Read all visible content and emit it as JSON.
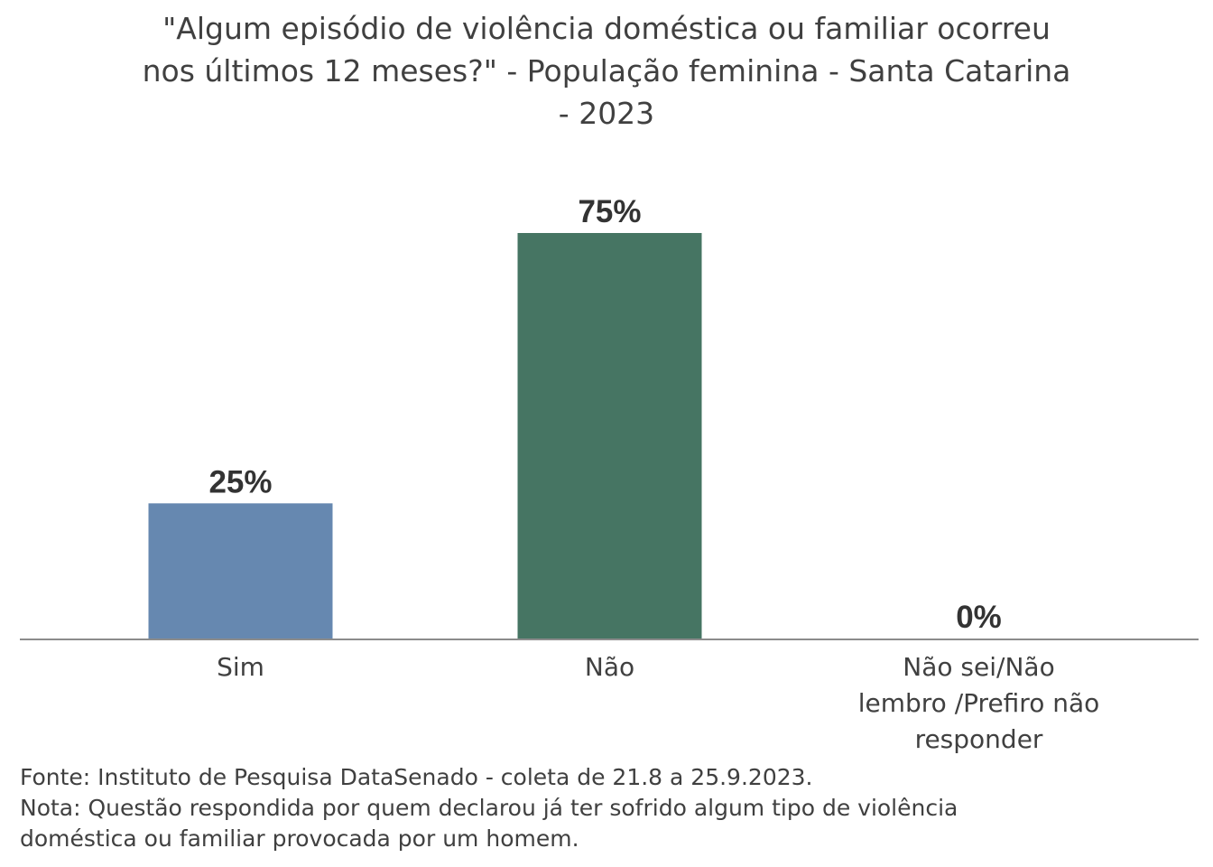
{
  "chart_data": {
    "type": "bar",
    "title_lines": [
      "\"Algum episódio de violência doméstica ou familiar ocorreu",
      "nos últimos 12 meses?\" - População feminina - Santa Catarina",
      "- 2023"
    ],
    "categories": [
      [
        "Sim"
      ],
      [
        "Não"
      ],
      [
        "Não sei/Não",
        "lembro /Prefiro não",
        "responder"
      ]
    ],
    "values": [
      25,
      75,
      0
    ],
    "value_labels": [
      "25%",
      "75%",
      "0%"
    ],
    "colors": [
      "#6688B0",
      "#467563",
      "#9C9C9C"
    ],
    "ylim": [
      0,
      75
    ],
    "grid": false,
    "legend": "none"
  },
  "notes": {
    "source": "Fonte: Instituto de Pesquisa DataSenado - coleta de 21.8 a 25.9.2023.",
    "note_lines": [
      "Nota: Questão respondida por quem declarou já ter sofrido algum tipo de violência",
      "doméstica ou familiar provocada por um homem."
    ]
  }
}
